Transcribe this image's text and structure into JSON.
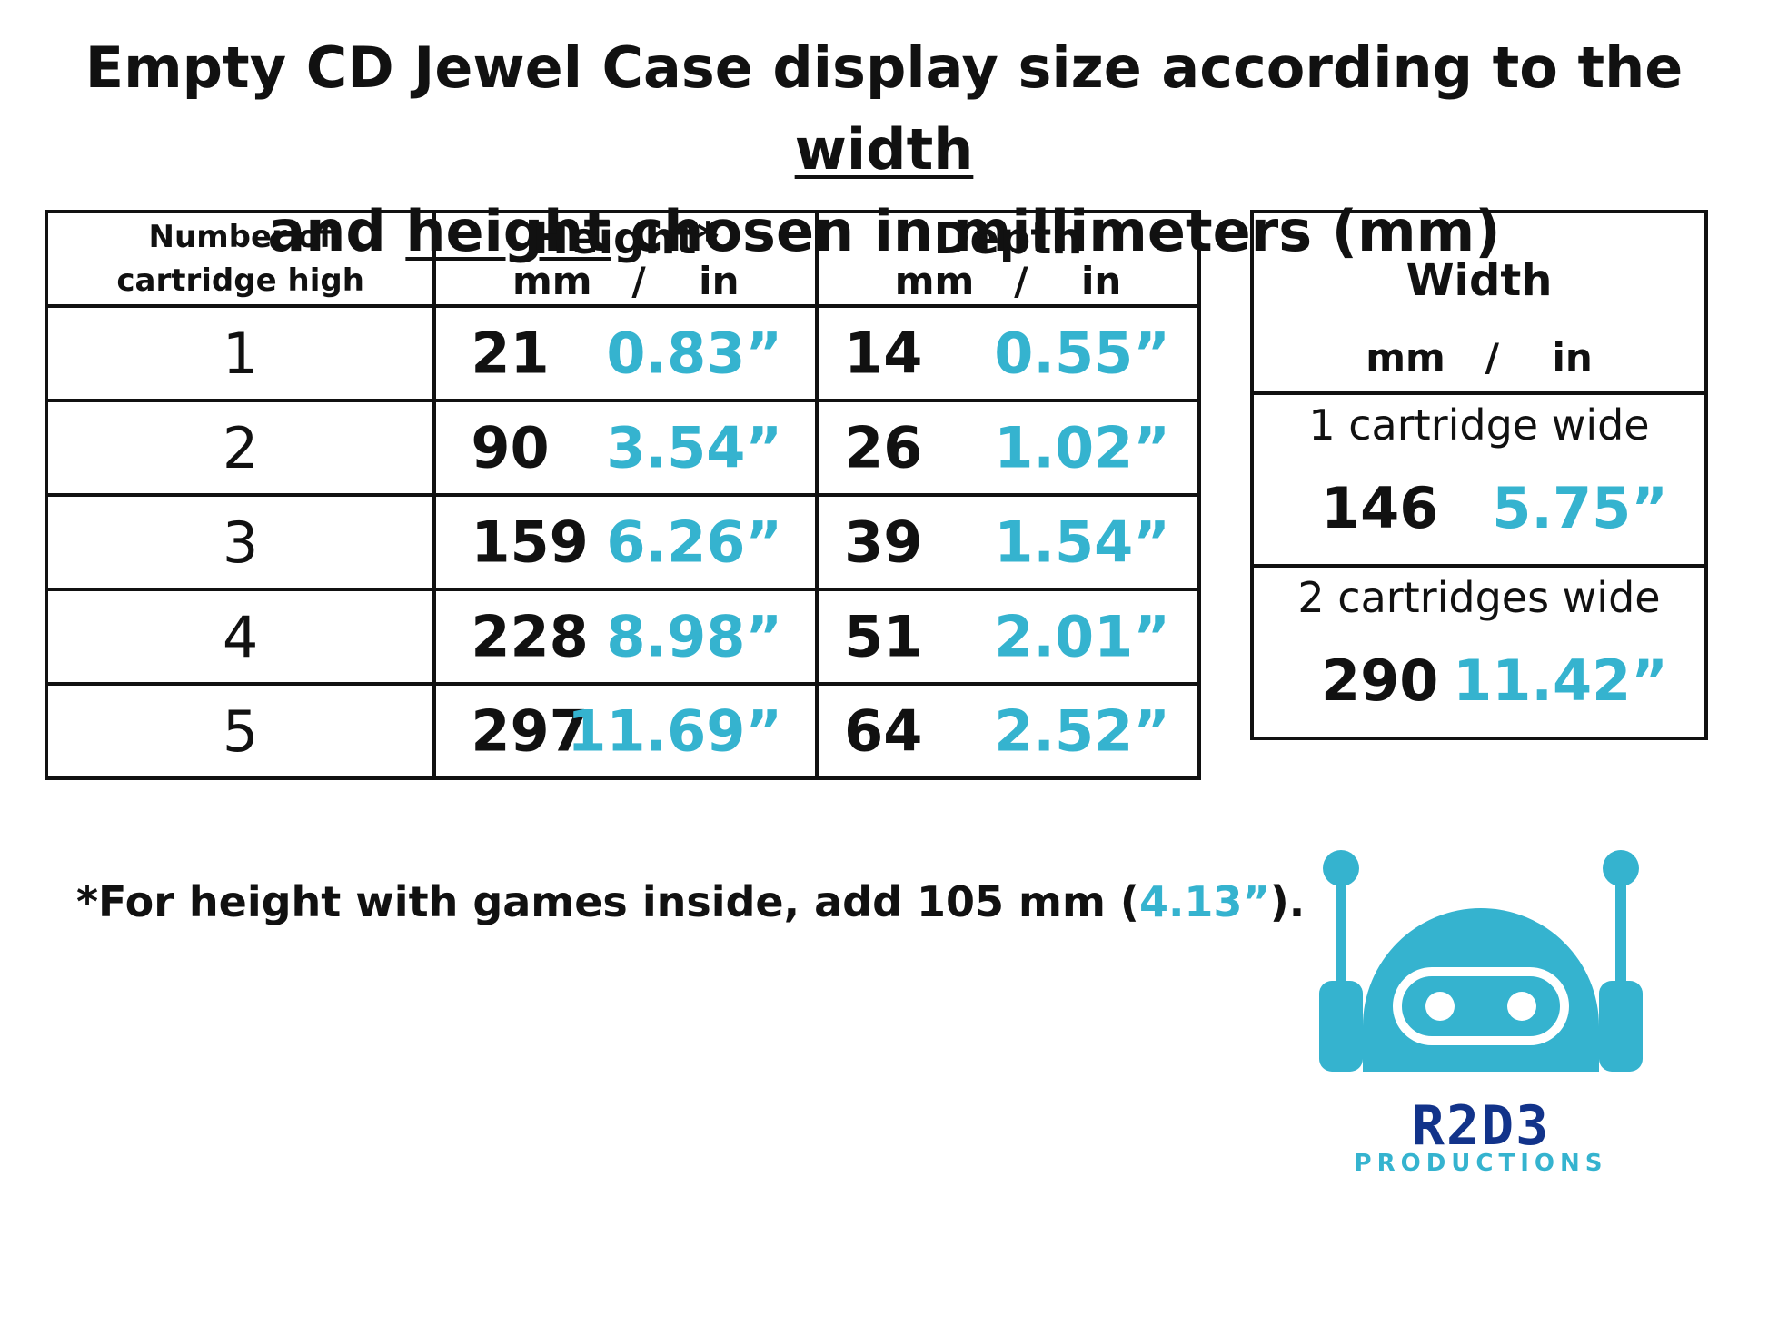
{
  "title": {
    "part1": "Empty CD Jewel Case display size according to the ",
    "word_width": "width",
    "line2_start": "and ",
    "word_height": "height",
    "part2": " chosen in millimeters (mm)"
  },
  "main_table": {
    "headers": {
      "col1_line1": "Number of",
      "col1_line2": "cartridge high",
      "col2_title": "Height*",
      "col2_units": "mm   /    in",
      "col3_title": "Depth",
      "col3_units": "mm   /    in"
    },
    "rows": [
      {
        "n": "1",
        "height_mm": "21",
        "height_in": "0.83”",
        "depth_mm": "14",
        "depth_in": "0.55”"
      },
      {
        "n": "2",
        "height_mm": "90",
        "height_in": "3.54”",
        "depth_mm": "26",
        "depth_in": "1.02”"
      },
      {
        "n": "3",
        "height_mm": "159",
        "height_in": "6.26”",
        "depth_mm": "39",
        "depth_in": "1.54”"
      },
      {
        "n": "4",
        "height_mm": "228",
        "height_in": "8.98”",
        "depth_mm": "51",
        "depth_in": "2.01”"
      },
      {
        "n": "5",
        "height_mm": "297",
        "height_in": "11.69”",
        "depth_mm": "64",
        "depth_in": "2.52”"
      }
    ]
  },
  "width_table": {
    "title": "Width",
    "units": "mm   /    in",
    "rows": [
      {
        "label": "1 cartridge wide",
        "mm": "146",
        "in": "5.75”"
      },
      {
        "label": "2 cartridges wide",
        "mm": "290",
        "in": "11.42”"
      }
    ]
  },
  "footnote": {
    "before": "*For height with games inside, add 105 mm (",
    "highlight": "4.13”",
    "after": ")."
  },
  "logo": {
    "icon": "robot-head-icon",
    "brand": "R2D3",
    "sub": "PRODUCTIONS",
    "color_primary": "#35b3cf",
    "color_brand": "#12338a"
  }
}
